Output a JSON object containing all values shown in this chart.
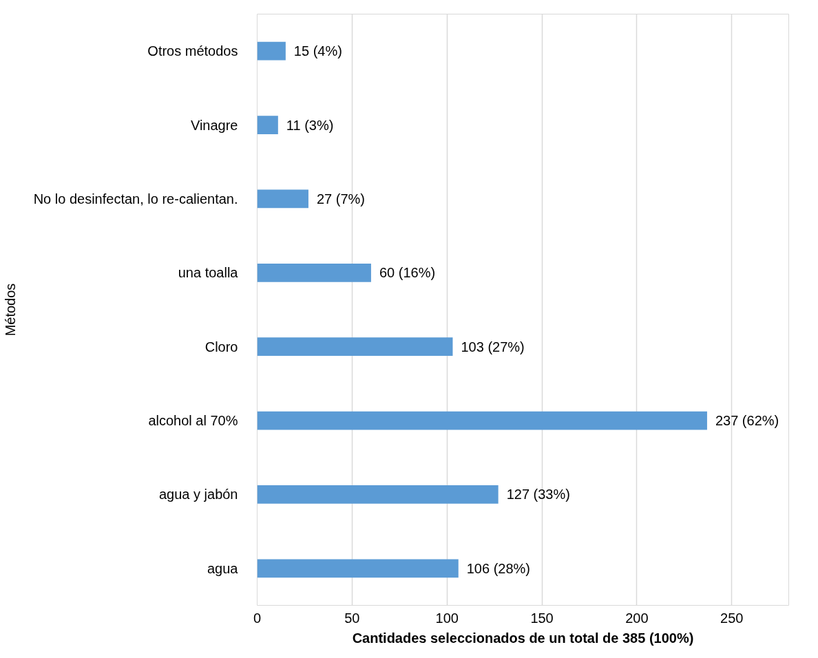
{
  "chart_data": {
    "type": "bar",
    "orientation": "horizontal",
    "xlabel": "Cantidades seleccionados de un total de 385 (100%)",
    "ylabel": "Métodos",
    "categories": [
      "Otros métodos",
      "Vinagre",
      "No lo desinfectan, lo re-calientan.",
      "una toalla",
      "Cloro",
      "alcohol al 70%",
      "agua y jabón",
      "agua"
    ],
    "values": [
      15,
      11,
      27,
      60,
      103,
      237,
      127,
      106
    ],
    "value_labels": [
      "15 (4%)",
      "11 (3%)",
      "27 (7%)",
      "60 (16%)",
      "103 (27%)",
      "237 (62%)",
      "127 (33%)",
      "106 (28%)"
    ],
    "color": "#5b9bd5",
    "xlim": [
      0,
      280
    ],
    "xticks": [
      0,
      50,
      100,
      150,
      200,
      250
    ],
    "grid": "x"
  }
}
